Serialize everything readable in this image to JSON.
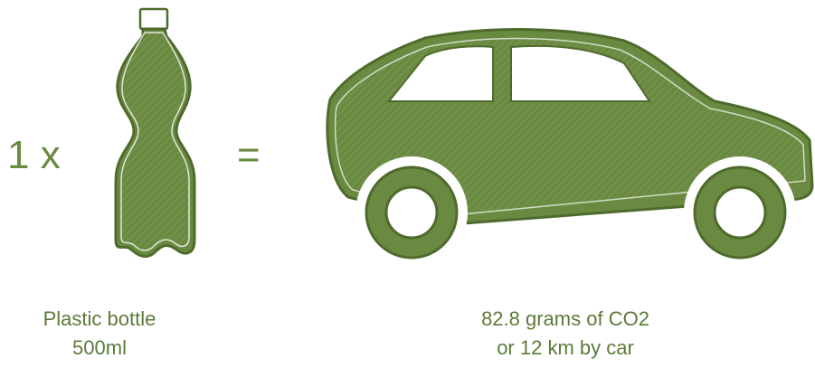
{
  "left": {
    "multiplier": "1 x",
    "label_lines": [
      "Plastic bottle",
      "500ml"
    ]
  },
  "equals": "=",
  "right": {
    "label_lines": [
      "82.8 grams of CO2",
      "or 12 km by car"
    ]
  }
}
